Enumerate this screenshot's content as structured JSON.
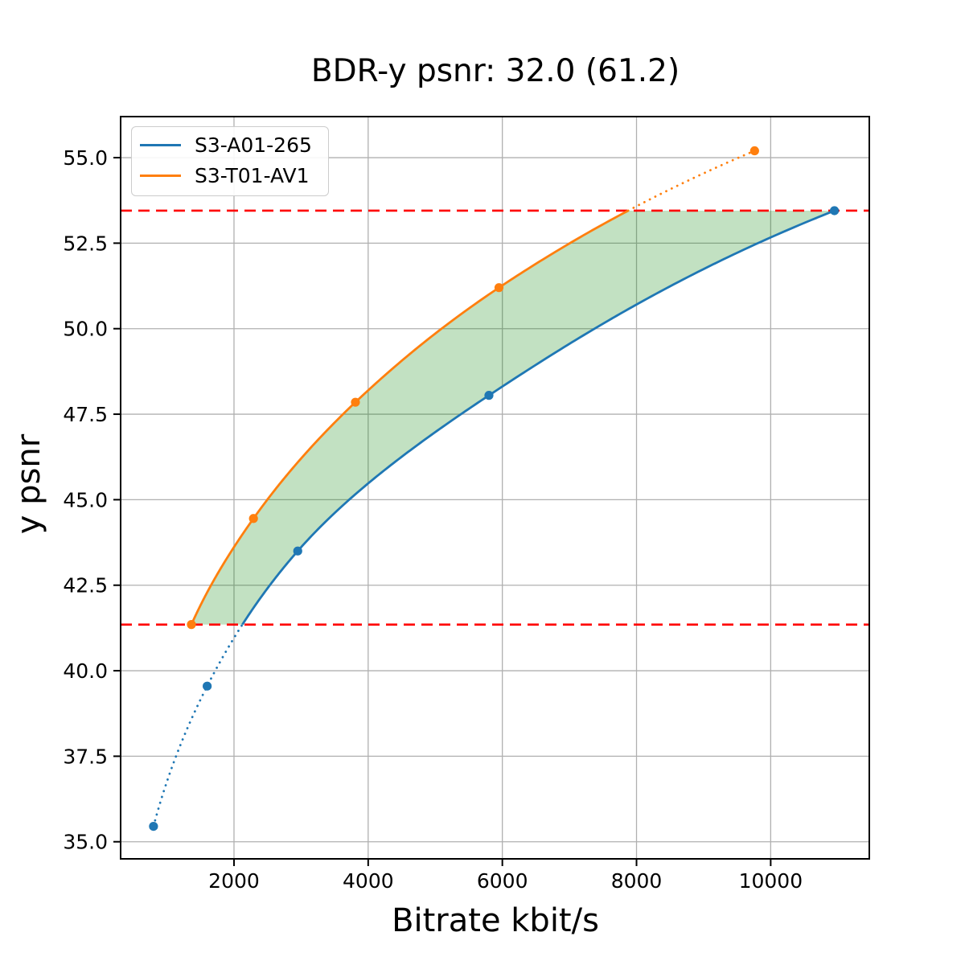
{
  "figure": {
    "title": "BDR-y psnr: 32.0 (61.2)",
    "xlabel": "Bitrate kbit/s",
    "ylabel": "y psnr"
  },
  "legend": {
    "entries": [
      {
        "label": "S3-A01-265",
        "color": "#1f77b4"
      },
      {
        "label": "S3-T01-AV1",
        "color": "#ff7f0e"
      }
    ],
    "position": "upper left"
  },
  "chart_data": {
    "type": "line",
    "title": "BDR-y psnr: 32.0 (61.2)",
    "xlabel": "Bitrate kbit/s",
    "ylabel": "y psnr",
    "xlim": [
      310,
      11470
    ],
    "ylim": [
      34.5,
      56.2
    ],
    "xticks": [
      2000,
      4000,
      6000,
      8000,
      10000
    ],
    "yticks": [
      35.0,
      37.5,
      40.0,
      42.5,
      45.0,
      47.5,
      50.0,
      52.5,
      55.0
    ],
    "grid": true,
    "grid_color": "#b0b0b0",
    "legend_position": "upper left",
    "series": [
      {
        "name": "S3-A01-265",
        "color": "#1f77b4",
        "x": [
          800,
          1600,
          2950,
          5800,
          10950
        ],
        "y": [
          35.45,
          39.55,
          43.5,
          48.05,
          53.45
        ],
        "out_of_range_style": "dotted_below_low"
      },
      {
        "name": "S3-T01-AV1",
        "color": "#ff7f0e",
        "x": [
          1365,
          2290,
          3810,
          5950,
          9760
        ],
        "y": [
          41.35,
          44.45,
          47.85,
          51.2,
          55.2
        ],
        "out_of_range_style": "dotted_above_high"
      }
    ],
    "bd_overlap_lines": {
      "color": "#ff0000",
      "style": "dashed",
      "y_low": 41.35,
      "y_high": 53.45
    },
    "shaded_region": {
      "color": "#008000",
      "alpha": 0.24,
      "between": [
        "S3-T01-AV1",
        "S3-A01-265"
      ]
    }
  }
}
